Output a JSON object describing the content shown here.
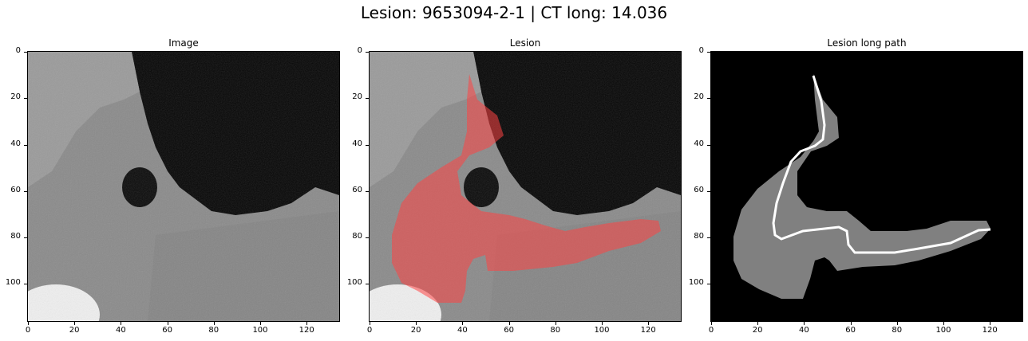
{
  "figure": {
    "title": "Lesion: 9653094-2-1 | CT long: 14.036"
  },
  "panels": [
    {
      "title": "Image"
    },
    {
      "title": "Lesion"
    },
    {
      "title": "Lesion long path"
    }
  ],
  "axes": {
    "x_ticks": [
      "0",
      "20",
      "40",
      "60",
      "80",
      "100",
      "120"
    ],
    "y_ticks": [
      "0",
      "20",
      "40",
      "60",
      "80",
      "100"
    ],
    "x_range": [
      0,
      134
    ],
    "y_range": [
      0,
      116
    ]
  },
  "colors": {
    "mask_overlay": "#ff4444",
    "lesion_fill": "#808080",
    "path_line": "#ffffff",
    "background": "#000000"
  }
}
